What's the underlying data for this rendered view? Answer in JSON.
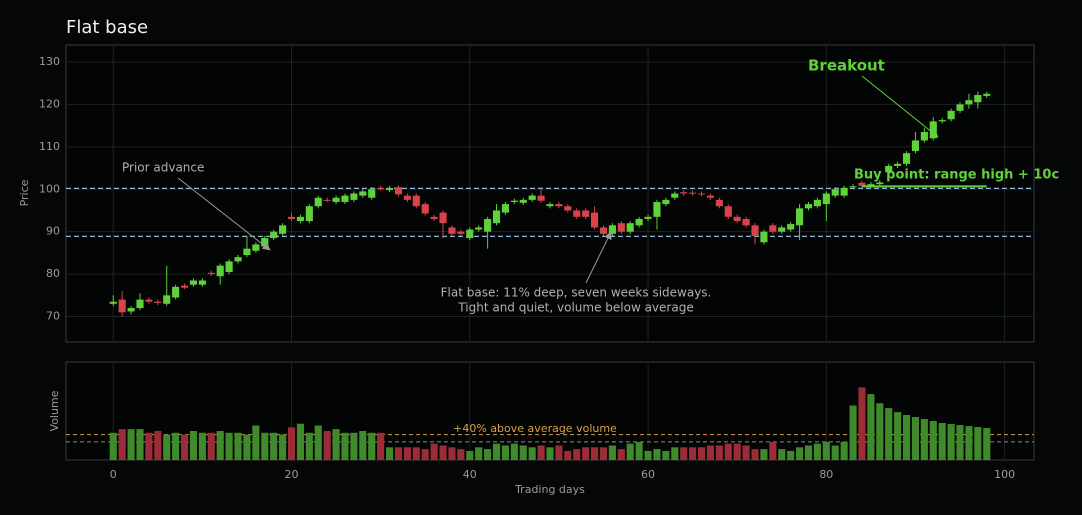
{
  "chart_data": {
    "type": "candlestick",
    "title": "Flat base",
    "x_label": "Trading days",
    "y_label": "Price",
    "volume_label": "Volume",
    "x": [
      0,
      1,
      2,
      3,
      4,
      5,
      6,
      7,
      8,
      9,
      10,
      11,
      12,
      13,
      14,
      15,
      16,
      17,
      18,
      19,
      20,
      21,
      22,
      23,
      24,
      25,
      26,
      27,
      28,
      29,
      30,
      31,
      32,
      33,
      34,
      35,
      36,
      37,
      38,
      39,
      40,
      41,
      42,
      43,
      44,
      45,
      46,
      47,
      48,
      49,
      50,
      51,
      52,
      53,
      54,
      55,
      56,
      57,
      58,
      59,
      60,
      61,
      62,
      63,
      64,
      65,
      66,
      67,
      68,
      69,
      70,
      71,
      72,
      73,
      74,
      75,
      76,
      77,
      78,
      79,
      80,
      81,
      82,
      83,
      84,
      85,
      86,
      87,
      88,
      89,
      90,
      91,
      92,
      93,
      94,
      95,
      96,
      97,
      98
    ],
    "open": [
      73,
      74,
      71.2,
      72,
      74,
      73.5,
      73,
      74.5,
      77.3,
      77.5,
      77.5,
      80.3,
      79.5,
      80.5,
      83,
      84.5,
      85.5,
      86.5,
      88.5,
      89.5,
      93.5,
      92.5,
      92.5,
      96,
      97.5,
      97,
      97,
      97.5,
      98.5,
      98,
      100.3,
      99.8,
      100.5,
      98.5,
      98.5,
      96.5,
      93.5,
      94.5,
      91,
      90,
      88.5,
      90.5,
      90,
      92,
      94.5,
      97,
      96.8,
      97.5,
      98.5,
      96,
      96.5,
      96,
      95,
      95,
      94.5,
      91,
      89.5,
      92,
      90,
      91.5,
      93,
      93.5,
      96.5,
      98,
      99.3,
      99.2,
      99,
      98.5,
      97.5,
      96,
      93.5,
      93,
      91.5,
      87.5,
      91.5,
      90,
      90.5,
      91.5,
      95.5,
      96,
      96.5,
      98.5,
      98.5,
      100.5,
      101.5,
      100.8,
      101.2,
      104,
      105.5,
      106,
      109,
      111.5,
      112,
      116,
      116.5,
      118.5,
      120,
      120.5,
      122
    ],
    "high": [
      75,
      76,
      72.5,
      75.5,
      74.5,
      74,
      82,
      77.5,
      77.8,
      79,
      79,
      80.8,
      82.5,
      83.5,
      84.5,
      89,
      87.5,
      89,
      90.5,
      92,
      94.5,
      94,
      96.5,
      98.5,
      98,
      98.5,
      99,
      99.5,
      100,
      100.5,
      100.8,
      100.8,
      101,
      99,
      99,
      97,
      94,
      95,
      91.5,
      90.5,
      91,
      91.5,
      93.5,
      96.5,
      97,
      97.8,
      98,
      99,
      100.5,
      97,
      97,
      96.5,
      95.5,
      95.5,
      96,
      91.5,
      92,
      92.5,
      92.5,
      93.5,
      94,
      97.5,
      98,
      99.5,
      99.8,
      99.7,
      99.5,
      99,
      98,
      96.5,
      94,
      93.5,
      92,
      90.5,
      92,
      91.5,
      92.3,
      96.5,
      97,
      98,
      99.5,
      100.5,
      100.8,
      101.2,
      102,
      101.7,
      102.1,
      106,
      106.5,
      109,
      113.5,
      114.5,
      117,
      116.8,
      119,
      120.5,
      122.5,
      123,
      123
    ],
    "low": [
      72.5,
      70,
      70.5,
      71.5,
      73,
      72.7,
      72.5,
      74,
      76.5,
      77,
      77,
      79.5,
      77.5,
      80,
      82.5,
      84,
      85,
      86,
      88,
      89,
      92.5,
      92,
      92,
      95.5,
      97,
      96.5,
      96.5,
      97,
      98,
      97.5,
      99.7,
      99.3,
      98.3,
      97,
      95.5,
      93.8,
      92.5,
      88.5,
      89,
      89,
      88,
      90,
      86,
      91.5,
      94,
      96.5,
      96.3,
      97,
      96.8,
      95.5,
      95.5,
      94.5,
      93,
      93,
      90.5,
      89,
      89,
      89.5,
      89.5,
      91,
      92.5,
      90.5,
      96,
      97.5,
      98.5,
      98.5,
      98.3,
      97.5,
      95.5,
      93,
      92,
      91,
      87,
      87,
      89.5,
      89.5,
      90,
      88,
      95,
      95.5,
      92.5,
      98,
      98,
      100,
      100.3,
      100.3,
      100.7,
      103.5,
      105,
      105.5,
      108.5,
      111,
      111.5,
      115.5,
      116,
      118,
      119,
      119,
      121.5
    ],
    "close": [
      73.5,
      71,
      72,
      74,
      73.5,
      73.2,
      75,
      77,
      76.8,
      78.5,
      78.5,
      80,
      82,
      83,
      84,
      86,
      87,
      88.5,
      90,
      91.5,
      93,
      93.5,
      96,
      98,
      97.3,
      98,
      98.5,
      99,
      99.5,
      100,
      100,
      100.3,
      98.8,
      97.5,
      96,
      94.3,
      93,
      92,
      89.5,
      89.5,
      90.5,
      91,
      93,
      95,
      96.5,
      97.3,
      97.5,
      98.5,
      97.3,
      96.5,
      96,
      95,
      93.5,
      93.5,
      91,
      89.5,
      91.5,
      90,
      92,
      93,
      93.5,
      97,
      97.5,
      99,
      99,
      99,
      98.8,
      98,
      96,
      93.5,
      92.5,
      91.5,
      89,
      90,
      90,
      91,
      91.8,
      95.5,
      96.5,
      97.5,
      99,
      100,
      100.3,
      100.7,
      100.8,
      101.2,
      101.6,
      105.5,
      106,
      108.5,
      111.5,
      113.5,
      116,
      116.3,
      118.5,
      120,
      121,
      122.2,
      122.5
    ],
    "volume": [
      150,
      170,
      170,
      170,
      150,
      160,
      140,
      150,
      140,
      160,
      150,
      150,
      160,
      150,
      150,
      140,
      190,
      150,
      150,
      140,
      180,
      200,
      150,
      190,
      160,
      170,
      150,
      150,
      160,
      150,
      150,
      70,
      70,
      70,
      70,
      60,
      90,
      80,
      70,
      60,
      50,
      70,
      60,
      90,
      80,
      90,
      80,
      70,
      80,
      70,
      80,
      50,
      60,
      70,
      70,
      70,
      80,
      60,
      90,
      100,
      50,
      60,
      50,
      70,
      70,
      70,
      70,
      80,
      80,
      90,
      90,
      80,
      60,
      60,
      100,
      60,
      50,
      70,
      80,
      90,
      100,
      80,
      100,
      300,
      400,
      363,
      313,
      286,
      264,
      248,
      237,
      226,
      215,
      204,
      198,
      193,
      187,
      182,
      176
    ],
    "up_color": "#5fd13b",
    "down_color": "#d9434b",
    "volume_up_color": "#3f8a2b",
    "volume_down_color": "#9c2c35",
    "xlim": [
      -5.3,
      103.3
    ],
    "xticks": [
      0,
      20,
      40,
      60,
      80,
      100
    ],
    "ylim": [
      64,
      134
    ],
    "yticks": [
      70,
      80,
      90,
      100,
      110,
      120,
      130
    ],
    "volume_ylim": [
      0,
      540
    ],
    "grid": true,
    "levels": [
      {
        "value": 100.2,
        "color": "#8fb6dc"
      },
      {
        "value": 88.9,
        "color": "#8fb6dc"
      }
    ],
    "volume_levels": [
      {
        "value": 100,
        "color": "#8a8a8a"
      },
      {
        "value": 140,
        "color": "#d9a04a"
      }
    ],
    "annotations": [
      {
        "text": "Prior advance"
      },
      {
        "text": [
          "Flat base: 11% deep, seven weeks sideways.",
          "Tight and quiet, volume below average"
        ]
      },
      {
        "text": "Breakout"
      },
      {
        "text": "Buy point: range high + 10c"
      },
      {
        "text": "+40% above average volume"
      }
    ]
  }
}
